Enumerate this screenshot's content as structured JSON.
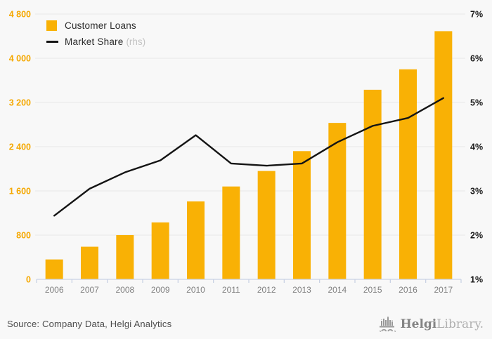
{
  "page": {
    "background": "#f8f8f8",
    "accent_color": "#F9B105",
    "line_color": "#141414",
    "grid_color": "#e9e9e9",
    "axis_line_color": "#c9d2e4",
    "left_tick_color": "#F5A800",
    "right_tick_color": "#1a1a1a",
    "year_label_color": "#7f7f7f"
  },
  "legend": {
    "items": [
      {
        "label": "Customer Loans",
        "suffix": "",
        "type": "bar",
        "color": "#F9B105"
      },
      {
        "label": "Market Share",
        "suffix": "(rhs)",
        "type": "line",
        "color": "#141414"
      }
    ]
  },
  "chart_data": {
    "type": "bar",
    "title": "",
    "categories": [
      "2006",
      "2007",
      "2008",
      "2009",
      "2010",
      "2011",
      "2012",
      "2013",
      "2014",
      "2015",
      "2016",
      "2017"
    ],
    "series": [
      {
        "name": "Customer Loans",
        "type": "bar",
        "axis": "left",
        "color": "#F9B105",
        "values": [
          360,
          590,
          800,
          1030,
          1410,
          1680,
          1960,
          2320,
          2830,
          3430,
          3800,
          4490
        ]
      },
      {
        "name": "Market Share (rhs)",
        "type": "line",
        "axis": "right",
        "color": "#141414",
        "values": [
          2.44,
          3.05,
          3.42,
          3.69,
          4.26,
          3.62,
          3.57,
          3.62,
          4.1,
          4.47,
          4.65,
          5.1
        ]
      }
    ],
    "left_axis": {
      "min": 0,
      "max": 4800,
      "tick_labels": [
        "4 800",
        "4 000",
        "3 200",
        "2 400",
        "1 600",
        "800",
        "0"
      ],
      "tick_values": [
        4800,
        4000,
        3200,
        2400,
        1600,
        800,
        0
      ]
    },
    "right_axis": {
      "min": 1,
      "max": 7,
      "tick_labels": [
        "7%",
        "6%",
        "5%",
        "4%",
        "3%",
        "2%",
        "1%"
      ],
      "tick_values": [
        7,
        6,
        5,
        4,
        3,
        2,
        1
      ]
    },
    "grid": "horizontal",
    "legend_position": "top-left"
  },
  "footer": {
    "source": "Source: Company Data, Helgi Analytics",
    "logo": {
      "name": "Helgi",
      "name2": "Library."
    }
  }
}
